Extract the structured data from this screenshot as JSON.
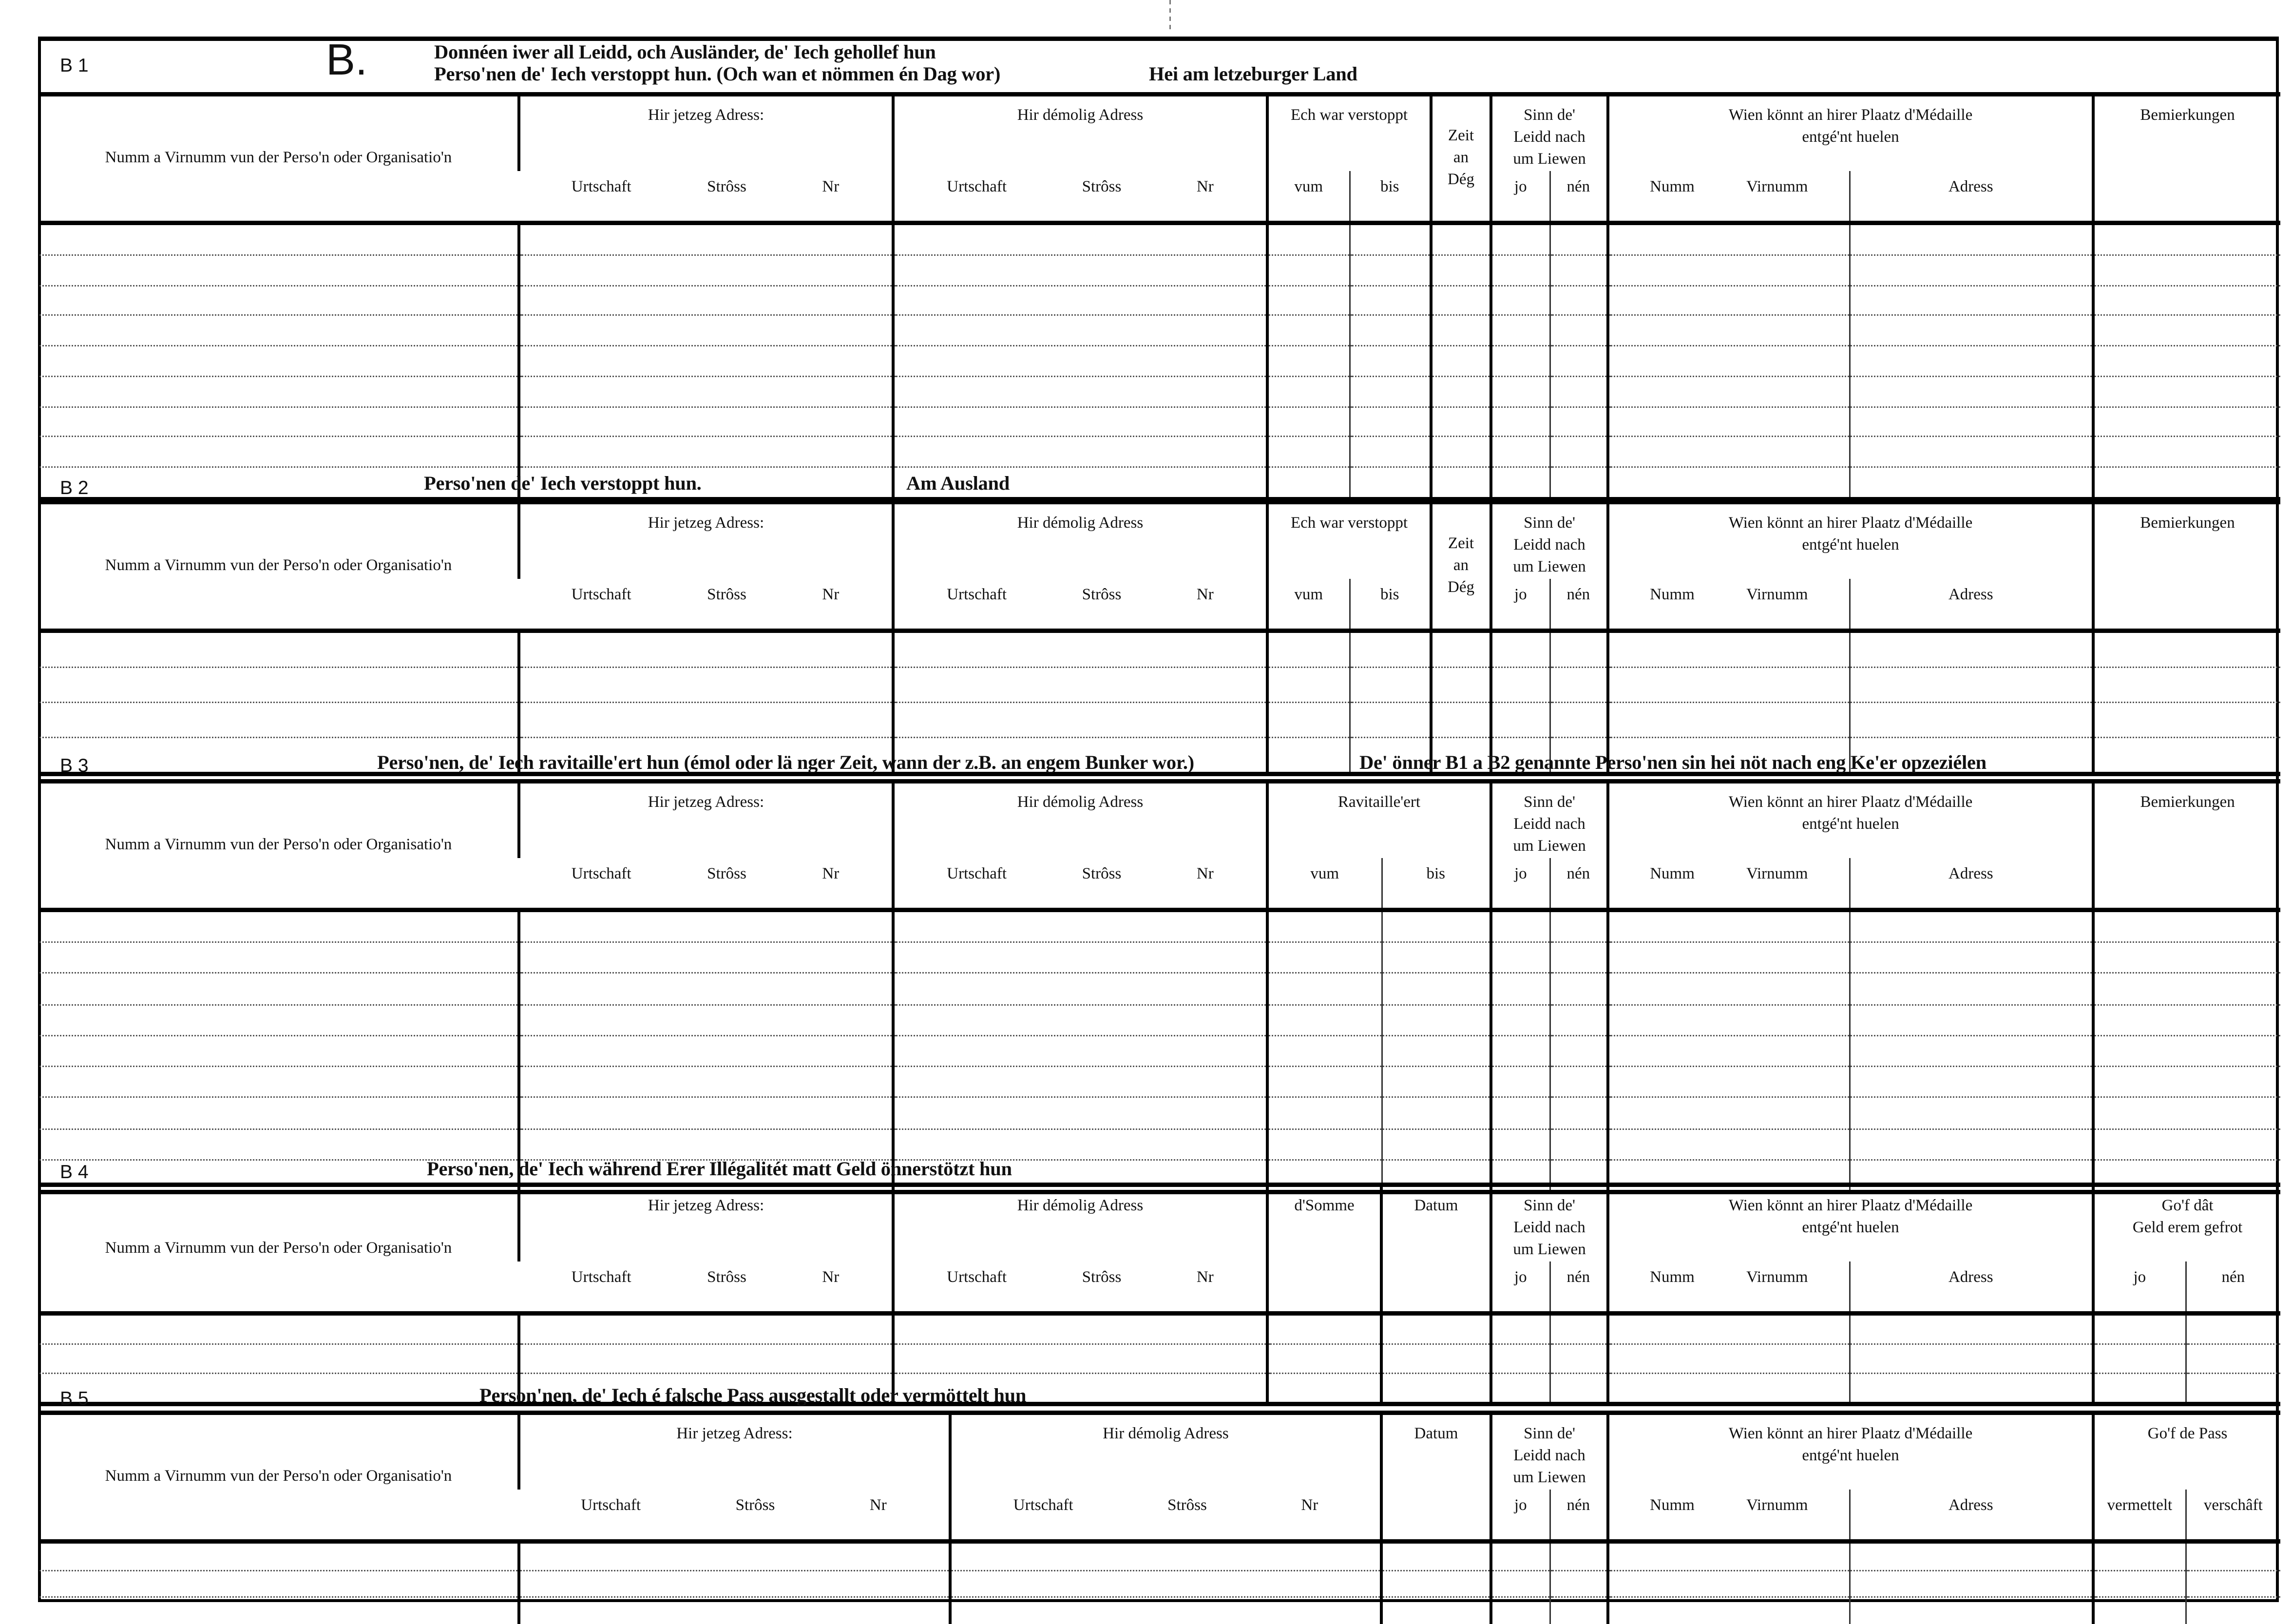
{
  "form": {
    "letter": "B."
  },
  "labels": {
    "name_col": "Numm a Virnumm vun der Perso'n oder Organisatio'n",
    "current_address": "Hir jetzeg Adress:",
    "former_address": "Hir démolig Adress",
    "town": "Urtschaft",
    "street": "Strôss",
    "nr": "Nr",
    "hidden": "Ech war verstoppt",
    "from": "vum",
    "to": "bis",
    "time_days": "Zeit\nan\nDég",
    "alive": "Sinn de'\nLeidd nach\num Liewen",
    "yes": "jo",
    "no": "nén",
    "medal": "Wien könnt an hirer Plaatz d'Médaille\nentgé'nt huelen",
    "surname": "Numm",
    "firstname": "Virnumm",
    "address": "Adress",
    "remarks": "Bemierkungen",
    "supplied": "Ravitaille'ert",
    "sum": "d'Somme",
    "date": "Datum",
    "money_back": "Go'f dât\nGeld erem gefrot",
    "pass": "Go'f de Pass",
    "mediated": "vermettelt",
    "procured": "verschâft"
  },
  "sections": [
    {
      "code": "B 1",
      "title_line1": "Donnéen iwer all Leidd, och Ausländer, de' Iech gehollef hun",
      "title_line2": "Perso'nen de' Iech verstoppt hun. (Och wan et nömmen én Dag wor)",
      "title_extra": "Hei am letzeburger Land"
    },
    {
      "code": "B 2",
      "title": "Perso'nen de' Iech verstoppt hun.",
      "title_extra": "Am Ausland"
    },
    {
      "code": "B 3",
      "title": "Perso'nen, de' Iech ravitaille'ert hun (émol oder lä nger Zeit, wann der z.B. an engem Bunker wor.)",
      "title_extra": "De' önner B1 a B2 genannte Perso'nen sin hei nöt nach eng Ke'er opzeziélen"
    },
    {
      "code": "B 4",
      "title": "Perso'nen, de' Iech während Erer Illégalitét matt Geld önnerstötzt hun"
    },
    {
      "code": "B 5",
      "title": "Person'nen, de' Iech é falsche Pass ausgestallt oder vermöttelt hun"
    }
  ]
}
